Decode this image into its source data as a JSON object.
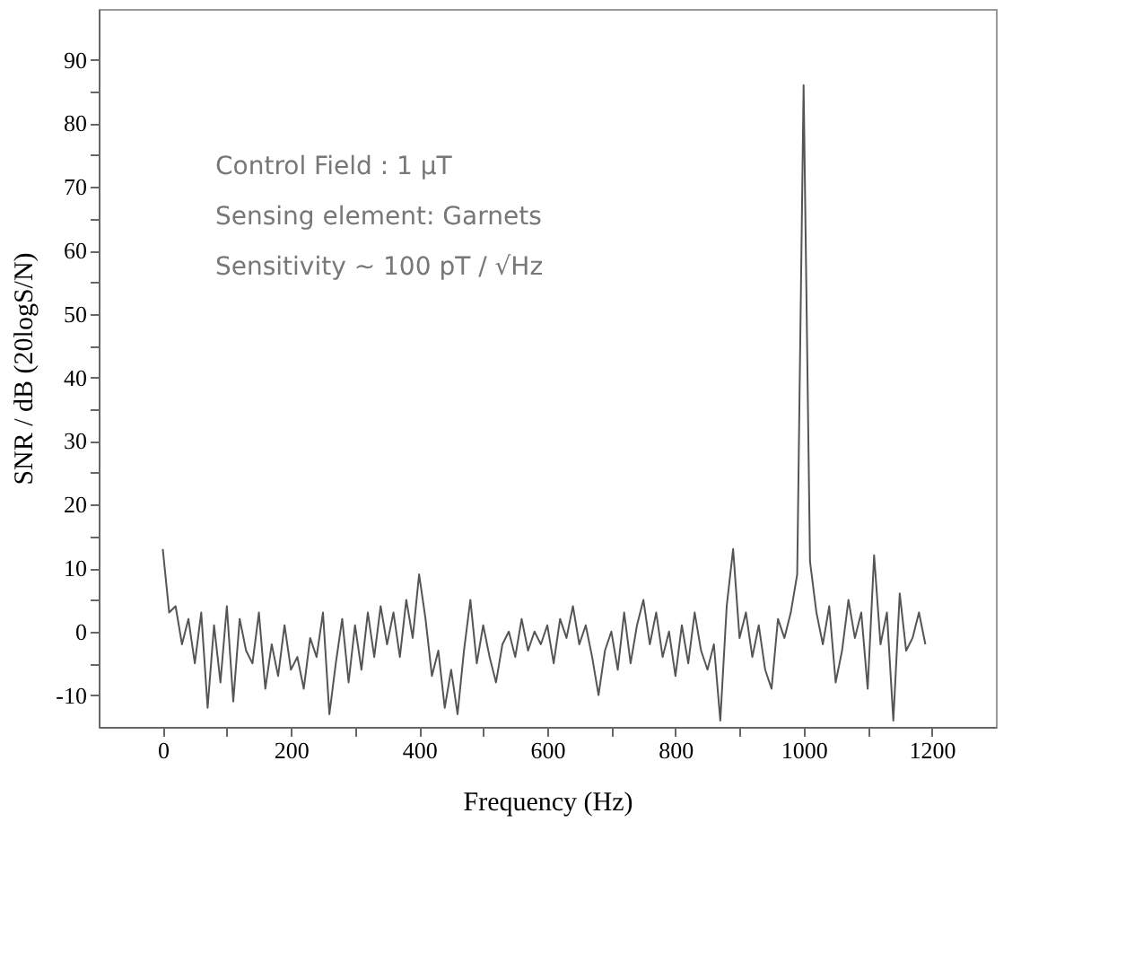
{
  "chart_data": {
    "type": "line",
    "xlabel": "Frequency (Hz)",
    "ylabel": "SNR / dB (20logS/N)",
    "annotations": [
      "Control Field : 1 μT",
      "Sensing element: Garnets",
      "Sensitivity ~ 100 pT / √Hz"
    ],
    "x": [
      0,
      10,
      20,
      30,
      40,
      50,
      60,
      70,
      80,
      90,
      100,
      110,
      120,
      130,
      140,
      150,
      160,
      170,
      180,
      190,
      200,
      210,
      220,
      230,
      240,
      250,
      260,
      270,
      280,
      290,
      300,
      310,
      320,
      330,
      340,
      350,
      360,
      370,
      380,
      390,
      400,
      410,
      420,
      430,
      440,
      450,
      460,
      470,
      480,
      490,
      500,
      510,
      520,
      530,
      540,
      550,
      560,
      570,
      580,
      590,
      600,
      610,
      620,
      630,
      640,
      650,
      660,
      670,
      680,
      690,
      700,
      710,
      720,
      730,
      740,
      750,
      760,
      770,
      780,
      790,
      800,
      810,
      820,
      830,
      840,
      850,
      860,
      870,
      880,
      890,
      900,
      910,
      920,
      930,
      940,
      950,
      960,
      970,
      980,
      990,
      1000,
      1010,
      1020,
      1030,
      1040,
      1050,
      1060,
      1070,
      1080,
      1090,
      1100,
      1110,
      1120,
      1130,
      1140,
      1150,
      1160,
      1170,
      1180,
      1190
    ],
    "series": [
      {
        "color": "#555555",
        "values": [
          13,
          3,
          4,
          -2,
          2,
          -5,
          3,
          -12,
          1,
          -8,
          4,
          -11,
          2,
          -3,
          -5,
          3,
          -9,
          -2,
          -7,
          1,
          -6,
          -4,
          -9,
          -1,
          -4,
          3,
          -13,
          -5,
          2,
          -8,
          1,
          -6,
          3,
          -4,
          4,
          -2,
          3,
          -4,
          5,
          -1,
          9,
          2,
          -7,
          -3,
          -12,
          -6,
          -13,
          -3,
          5,
          -5,
          1,
          -4,
          -8,
          -2,
          0,
          -4,
          2,
          -3,
          0,
          -2,
          1,
          -5,
          2,
          -1,
          4,
          -2,
          1,
          -4,
          -10,
          -3,
          0,
          -6,
          3,
          -5,
          1,
          5,
          -2,
          3,
          -4,
          0,
          -7,
          1,
          -5,
          3,
          -3,
          -6,
          -2,
          -14,
          4,
          13,
          -1,
          3,
          -4,
          1,
          -6,
          -9,
          2,
          -1,
          3,
          9,
          86,
          11,
          3,
          -2,
          4,
          -8,
          -3,
          5,
          -1,
          3,
          -9,
          12,
          -2,
          3,
          -14,
          6,
          -3,
          -1,
          3,
          -2
        ]
      }
    ],
    "xlim": [
      -100,
      1300
    ],
    "ylim": [
      -15,
      98
    ],
    "xticks": [
      0,
      {
        "value": 100,
        "label": null
      },
      200,
      {
        "value": 300,
        "label": null
      },
      400,
      {
        "value": 500,
        "label": null
      },
      600,
      {
        "value": 700,
        "label": null
      },
      800,
      {
        "value": 900,
        "label": null
      },
      1000,
      {
        "value": 1100,
        "label": null
      },
      1200
    ],
    "yticks": [
      -10,
      {
        "value": -5,
        "label": null
      },
      0,
      {
        "value": 5,
        "label": null
      },
      10,
      {
        "value": 15,
        "label": null
      },
      20,
      {
        "value": 25,
        "label": null
      },
      30,
      {
        "value": 35,
        "label": null
      },
      40,
      {
        "value": 45,
        "label": null
      },
      50,
      {
        "value": 55,
        "label": null
      },
      60,
      {
        "value": 65,
        "label": null
      },
      70,
      {
        "value": 75,
        "label": null
      },
      80,
      {
        "value": 85,
        "label": null
      },
      90
    ],
    "grid": false
  }
}
